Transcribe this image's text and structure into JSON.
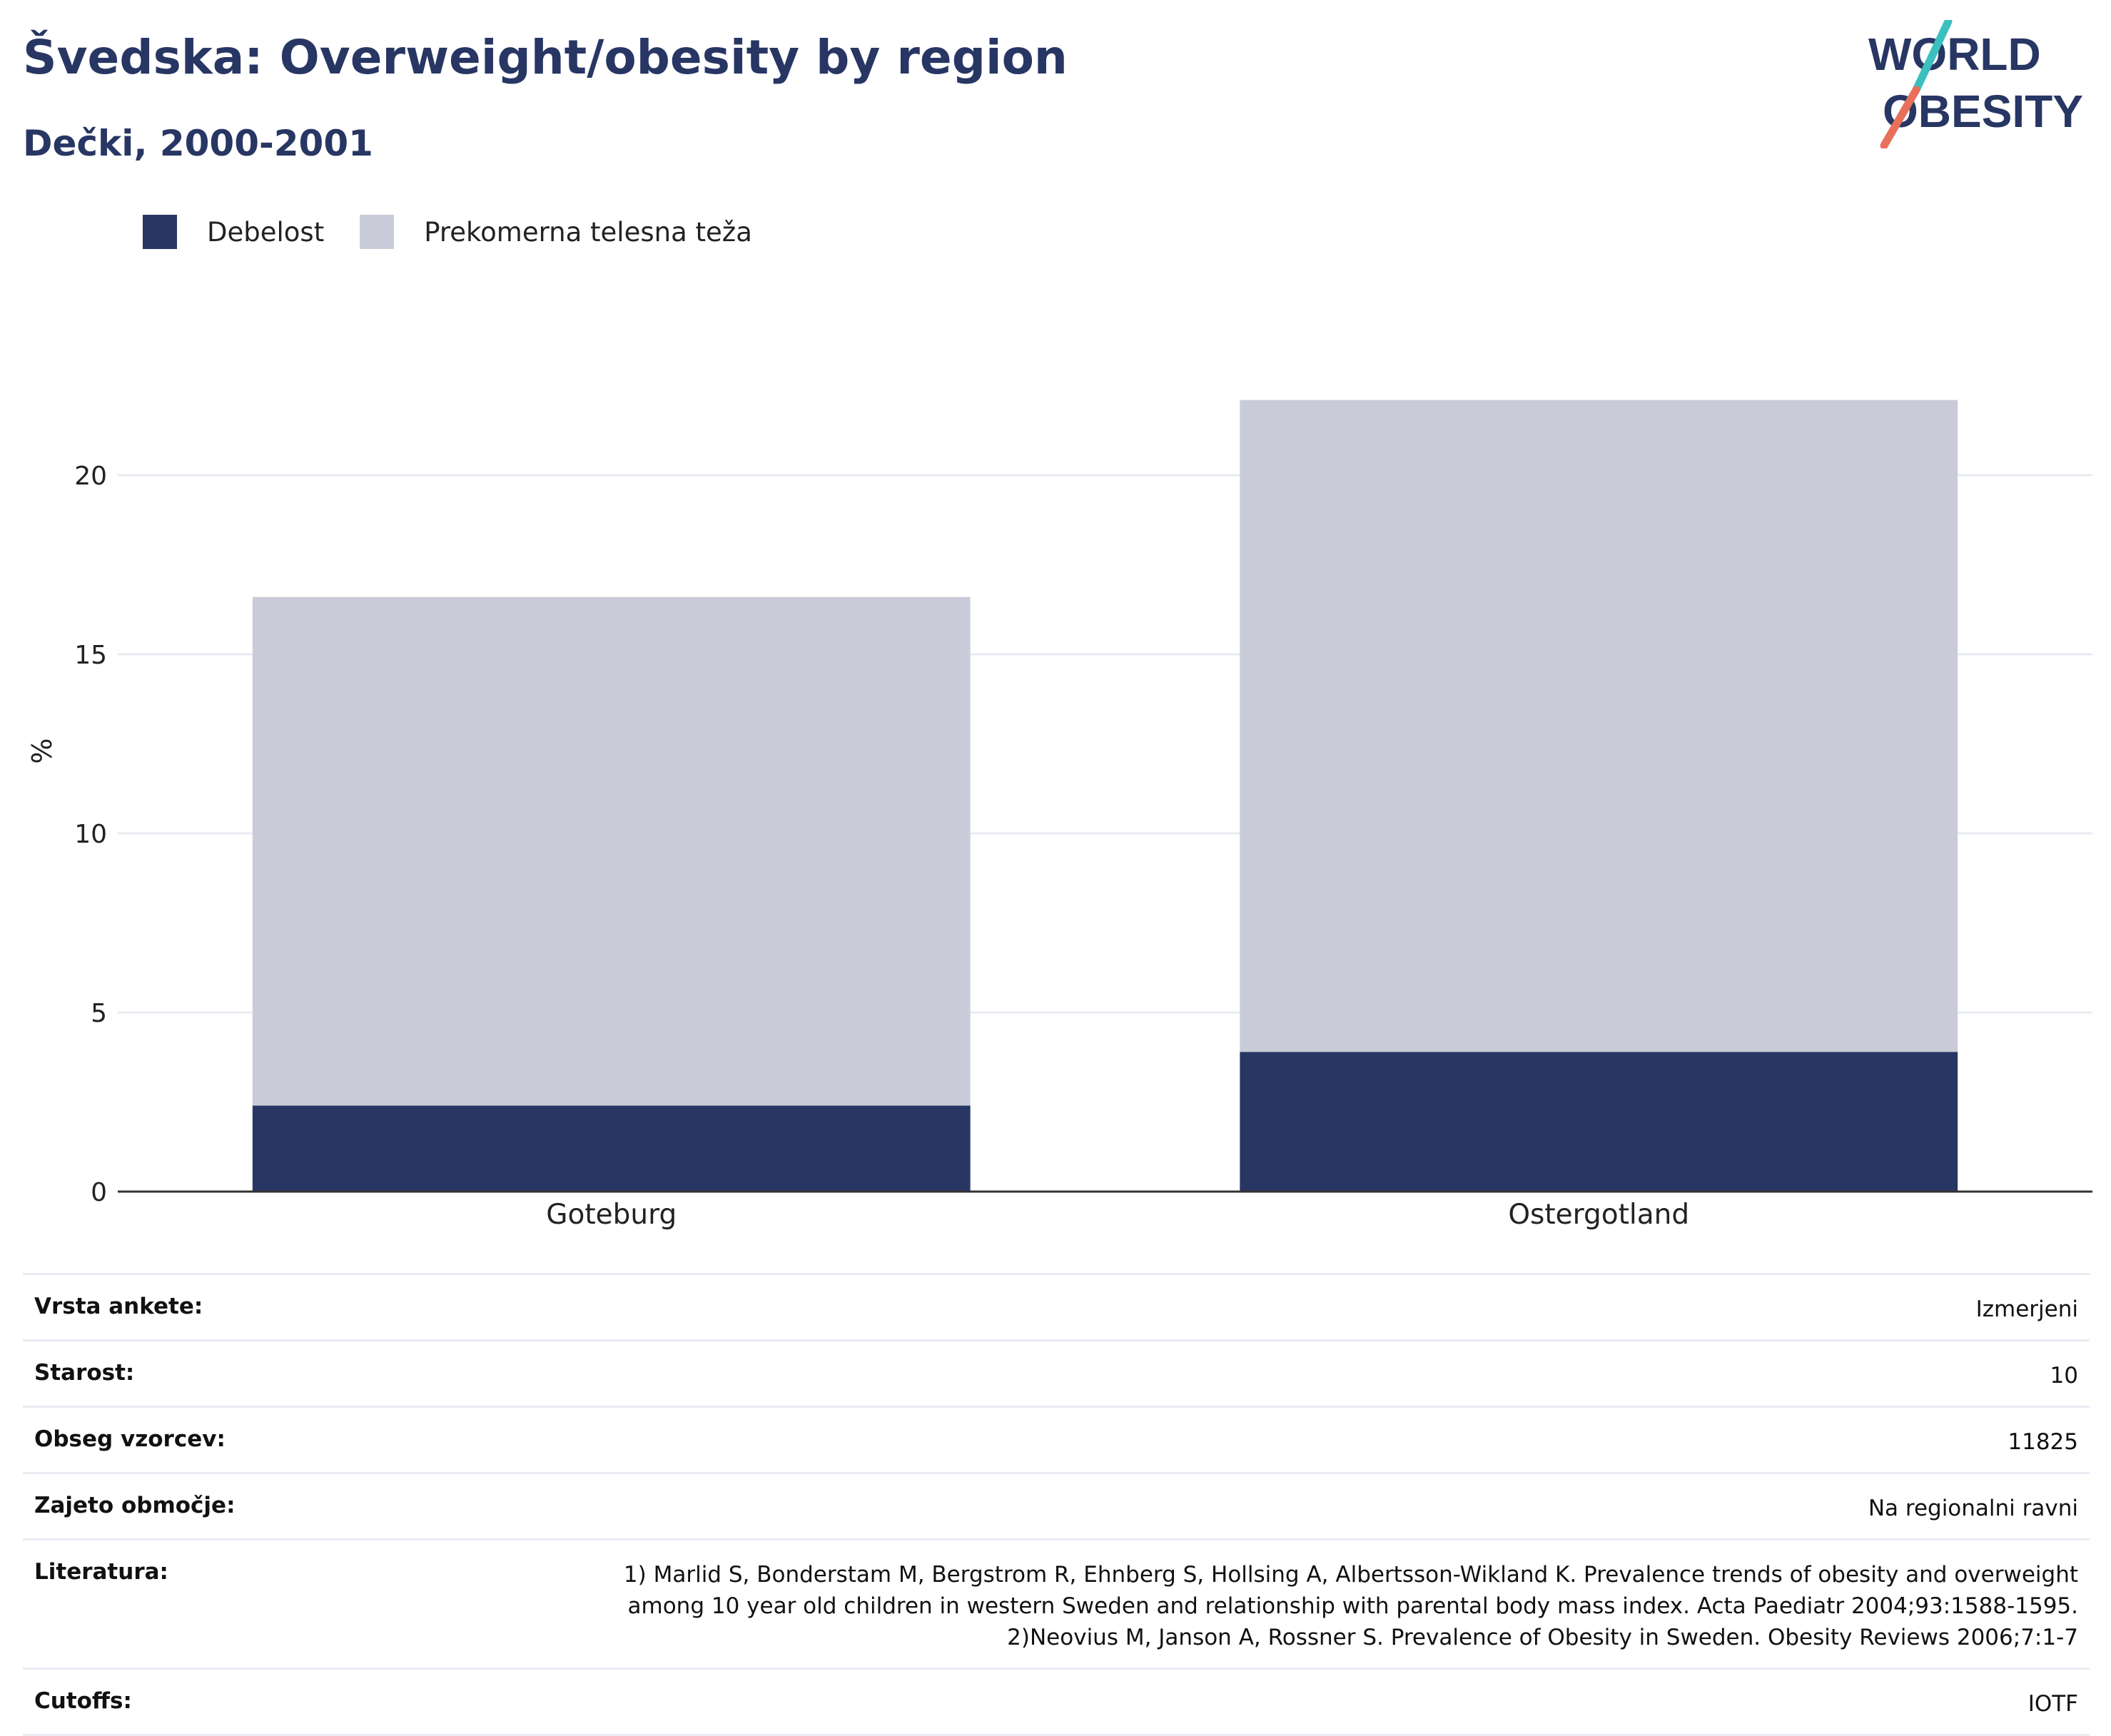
{
  "header": {
    "title": "Švedska: Overweight/obesity by region",
    "subtitle": "Dečki, 2000-2001",
    "logo_line1": "WORLD",
    "logo_line2": "OBESITY"
  },
  "colors": {
    "obesity": "#283664",
    "overweight": "#c9ccd8",
    "title": "#283664",
    "logo_teal": "#3cbfbf",
    "logo_coral": "#e8705b"
  },
  "chart_data": {
    "type": "bar",
    "stacked": true,
    "categories": [
      "Goteburg",
      "Ostergotland"
    ],
    "series": [
      {
        "name": "Debelost",
        "values": [
          2.4,
          3.9
        ]
      },
      {
        "name": "Prekomerna telesna teža",
        "values": [
          14.2,
          18.2
        ]
      }
    ],
    "totals": [
      16.6,
      22.1
    ],
    "ylabel": "%",
    "xlabel": "",
    "ylim": [
      0,
      25
    ],
    "yticks": [
      0,
      5,
      10,
      15,
      20
    ],
    "grid": true,
    "legend_position": "top-left"
  },
  "info": [
    {
      "label": "Vrsta ankete:",
      "value": [
        "Izmerjeni"
      ]
    },
    {
      "label": "Starost:",
      "value": [
        "10"
      ]
    },
    {
      "label": "Obseg vzorcev:",
      "value": [
        "11825"
      ]
    },
    {
      "label": "Zajeto območje:",
      "value": [
        "Na regionalni ravni"
      ]
    },
    {
      "label": "Literatura:",
      "value": [
        "1) Marlid S, Bonderstam M, Bergstrom R, Ehnberg S, Hollsing A, Albertsson-Wikland K. Prevalence trends of obesity and overweight",
        "among 10 year old children in western Sweden and relationship with parental body mass index. Acta Paediatr 2004;93:1588-1595.",
        "2)Neovius M, Janson A, Rossner S. Prevalence of Obesity in Sweden. Obesity Reviews 2006;7:1-7"
      ]
    },
    {
      "label": "Cutoffs:",
      "value": [
        "IOTF"
      ]
    }
  ]
}
